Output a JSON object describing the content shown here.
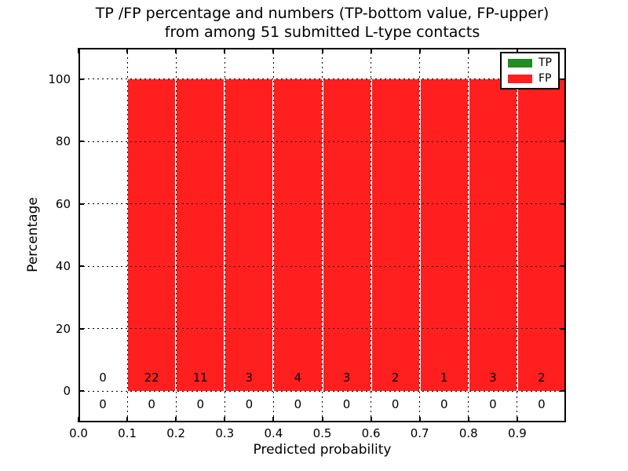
{
  "figure": {
    "title_line1": "TP /FP percentage and numbers (TP-bottom value, FP-upper)",
    "title_line2": "from among 51 submitted L-type contacts",
    "xlabel": "Predicted probability",
    "ylabel": "Percentage"
  },
  "legend": {
    "position": "upper right",
    "items": [
      {
        "label": "TP",
        "color": "#228b22"
      },
      {
        "label": "FP",
        "color": "#ff1f1f"
      }
    ]
  },
  "chart_data": {
    "type": "bar",
    "stacked": true,
    "title": "TP /FP percentage and numbers (TP-bottom value, FP-upper)\nfrom among 51 submitted L-type contacts",
    "xlabel": "Predicted probability",
    "ylabel": "Percentage",
    "xlim": [
      0.0,
      1.0
    ],
    "ylim": [
      -10,
      110
    ],
    "grid": "dotted",
    "legend_position": "upper right",
    "total_contacts": 51,
    "bin_edges": [
      0.0,
      0.1,
      0.2,
      0.3,
      0.4,
      0.5,
      0.6,
      0.7,
      0.8,
      0.9,
      1.0
    ],
    "bin_centers": [
      0.05,
      0.15,
      0.25,
      0.35,
      0.45,
      0.55,
      0.65,
      0.75,
      0.85,
      0.95
    ],
    "x_tick_labels": [
      "0.0",
      "0.1",
      "0.2",
      "0.3",
      "0.4",
      "0.5",
      "0.6",
      "0.7",
      "0.8",
      "0.9"
    ],
    "y_tick_labels": [
      "0",
      "20",
      "40",
      "60",
      "80",
      "100"
    ],
    "series": [
      {
        "name": "TP",
        "color": "#228b22",
        "percent": [
          0,
          0,
          0,
          0,
          0,
          0,
          0,
          0,
          0,
          0
        ],
        "counts": [
          0,
          0,
          0,
          0,
          0,
          0,
          0,
          0,
          0,
          0
        ],
        "count_label_row": "below-zero-line"
      },
      {
        "name": "FP",
        "color": "#ff1f1f",
        "percent": [
          0,
          100,
          100,
          100,
          100,
          100,
          100,
          100,
          100,
          100
        ],
        "counts": [
          0,
          22,
          11,
          3,
          4,
          3,
          2,
          1,
          3,
          2
        ],
        "count_label_row": "above-zero-line"
      }
    ]
  }
}
